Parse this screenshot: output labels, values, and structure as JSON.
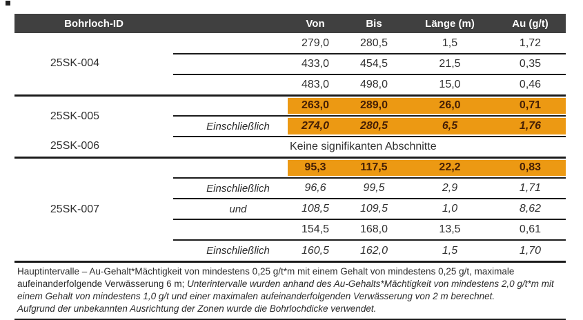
{
  "header": {
    "bohrloch_id": "Bohrloch-ID",
    "von": "Von",
    "bis": "Bis",
    "laenge": "Länge (m)",
    "au": "Au (g/t)"
  },
  "colors": {
    "header_bg": "#404040",
    "highlight": "#EC9913",
    "highlight_text": "#451F05",
    "line": "#1a1a1a"
  },
  "rows": [
    {
      "id": "25SK-004",
      "qual": "",
      "von": "279,0",
      "bis": "280,5",
      "laenge": "1,5",
      "au": "1,72",
      "highlight": false,
      "italic": false
    },
    {
      "qual": "",
      "von": "433,0",
      "bis": "454,5",
      "laenge": "21,5",
      "au": "0,35",
      "highlight": false,
      "italic": false
    },
    {
      "qual": "",
      "von": "483,0",
      "bis": "498,0",
      "laenge": "15,0",
      "au": "0,46",
      "highlight": false,
      "italic": false
    },
    {
      "id": "25SK-005",
      "qual": "",
      "von": "263,0",
      "bis": "289,0",
      "laenge": "26,0",
      "au": "0,71",
      "highlight": true,
      "italic": false
    },
    {
      "qual": "Einschließlich",
      "von": "274,0",
      "bis": "280,5",
      "laenge": "6,5",
      "au": "1,76",
      "highlight": true,
      "italic": true
    },
    {
      "id": "25SK-006",
      "note": "Keine signifikanten Abschnitte"
    },
    {
      "id": "25SK-007",
      "qual": "",
      "von": "95,3",
      "bis": "117,5",
      "laenge": "22,2",
      "au": "0,83",
      "highlight": true,
      "italic": false
    },
    {
      "qual": "Einschließlich",
      "von": "96,6",
      "bis": "99,5",
      "laenge": "2,9",
      "au": "1,71",
      "highlight": false,
      "italic": true
    },
    {
      "qual": "und",
      "von": "108,5",
      "bis": "109,5",
      "laenge": "1,0",
      "au": "8,62",
      "highlight": false,
      "italic": true
    },
    {
      "qual": "",
      "von": "154,5",
      "bis": "168,0",
      "laenge": "13,5",
      "au": "0,61",
      "highlight": false,
      "italic": false
    },
    {
      "qual": "Einschließlich",
      "von": "160,5",
      "bis": "162,0",
      "laenge": "1,5",
      "au": "1,70",
      "highlight": false,
      "italic": true
    }
  ],
  "footnote": {
    "part1": "Hauptintervalle – Au-Gehalt*Mächtigkeit von mindestens 0,25 g/t*m mit einem Gehalt von mindestens 0,25 g/t, maximale aufeinanderfolgende Verwässerung 6 m; ",
    "part2_italic": "Unterintervalle wurden anhand des Au-Gehalts*Mächtigkeit von mindestens 2,0 g/t*m mit einem Gehalt von mindestens 1,0 g/t und einer maximalen aufeinanderfolgenden Verwässerung von 2 m berechnet.",
    "part3_italic": "Aufgrund der unbekannten Ausrichtung der Zonen wurde die Bohrlochdicke verwendet."
  }
}
